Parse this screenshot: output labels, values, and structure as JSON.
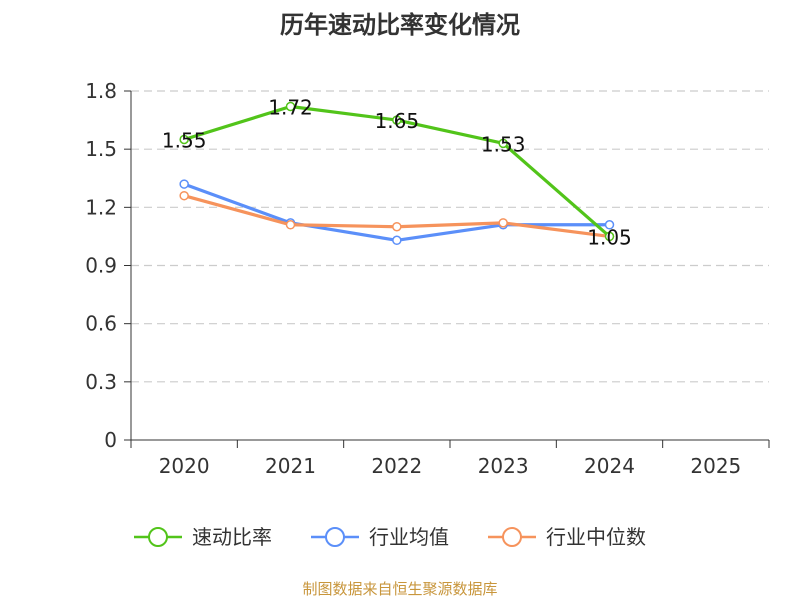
{
  "chart_data": {
    "type": "line",
    "title": "历年速动比率变化情况",
    "categories": [
      "2020",
      "2021",
      "2022",
      "2023",
      "2024",
      "2025"
    ],
    "y_ticks": [
      "0",
      "0.3",
      "0.6",
      "0.9",
      "1.2",
      "1.5",
      "1.8"
    ],
    "ylim": [
      0,
      1.8
    ],
    "grid": true,
    "legend_position": "bottom",
    "series": [
      {
        "name": "速动比率",
        "color": "#52c41a",
        "values": [
          1.55,
          1.72,
          1.65,
          1.53,
          1.05,
          null
        ],
        "data_labels": [
          "1.55",
          "1.72",
          "1.65",
          "1.53",
          "1.05",
          null
        ]
      },
      {
        "name": "行业均值",
        "color": "#5b8ff9",
        "values": [
          1.32,
          1.12,
          1.03,
          1.11,
          1.11,
          null
        ]
      },
      {
        "name": "行业中位数",
        "color": "#f6935c",
        "values": [
          1.26,
          1.11,
          1.1,
          1.12,
          1.05,
          null
        ]
      }
    ],
    "source": "制图数据来自恒生聚源数据库"
  }
}
